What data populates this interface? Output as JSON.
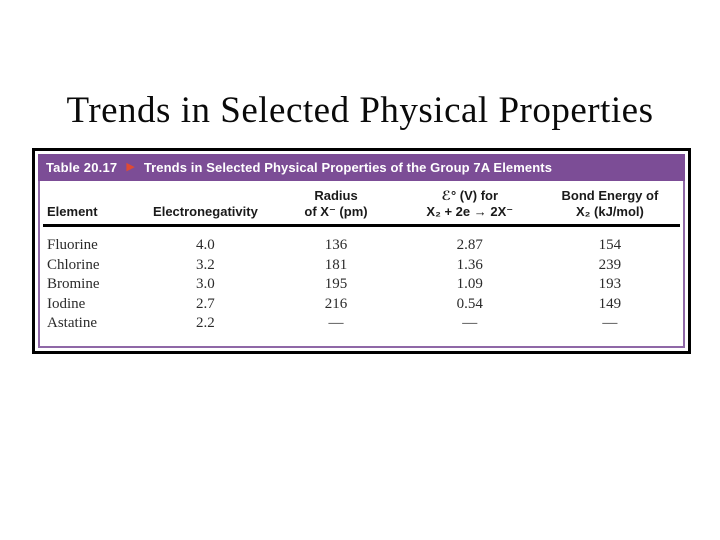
{
  "slide": {
    "title": "Trends in Selected Physical Properties"
  },
  "figure": {
    "caption": {
      "label": "Table 20.17",
      "arrow_icon": "▶",
      "text": "Trends in Selected Physical Properties of the Group 7A Elements"
    },
    "colors": {
      "header_purple": "#7c4d96",
      "frame_purple": "#8f68a7",
      "arrow_orange": "#e04a33",
      "outer_border": "#000000"
    },
    "table": {
      "columns": [
        {
          "line2": "Element"
        },
        {
          "line2": "Electronegativity"
        },
        {
          "line1": "Radius",
          "line2": "of X⁻ (pm)"
        },
        {
          "line1": "ℰ° (V) for",
          "line2": "X₂ + 2e → 2X⁻"
        },
        {
          "line1": "Bond Energy of",
          "line2": "X₂ (kJ/mol)"
        }
      ],
      "rows": [
        {
          "element": "Fluorine",
          "electronegativity": "4.0",
          "radius": "136",
          "potential": "2.87",
          "bond_energy": "154"
        },
        {
          "element": "Chlorine",
          "electronegativity": "3.2",
          "radius": "181",
          "potential": "1.36",
          "bond_energy": "239"
        },
        {
          "element": "Bromine",
          "electronegativity": "3.0",
          "radius": "195",
          "potential": "1.09",
          "bond_energy": "193"
        },
        {
          "element": "Iodine",
          "electronegativity": "2.7",
          "radius": "216",
          "potential": "0.54",
          "bond_energy": "149"
        },
        {
          "element": "Astatine",
          "electronegativity": "2.2",
          "radius": "—",
          "potential": "—",
          "bond_energy": "—"
        }
      ]
    }
  },
  "chart_data": {
    "type": "table",
    "title": "Trends in Selected Physical Properties of the Group 7A Elements",
    "columns": [
      "Element",
      "Electronegativity",
      "Radius of X⁻ (pm)",
      "ℰ° (V) for X₂ + 2e → 2X⁻",
      "Bond Energy of X₂ (kJ/mol)"
    ],
    "rows": [
      [
        "Fluorine",
        4.0,
        136,
        2.87,
        154
      ],
      [
        "Chlorine",
        3.2,
        181,
        1.36,
        239
      ],
      [
        "Bromine",
        3.0,
        195,
        1.09,
        193
      ],
      [
        "Iodine",
        2.7,
        216,
        0.54,
        149
      ],
      [
        "Astatine",
        2.2,
        null,
        null,
        null
      ]
    ]
  }
}
